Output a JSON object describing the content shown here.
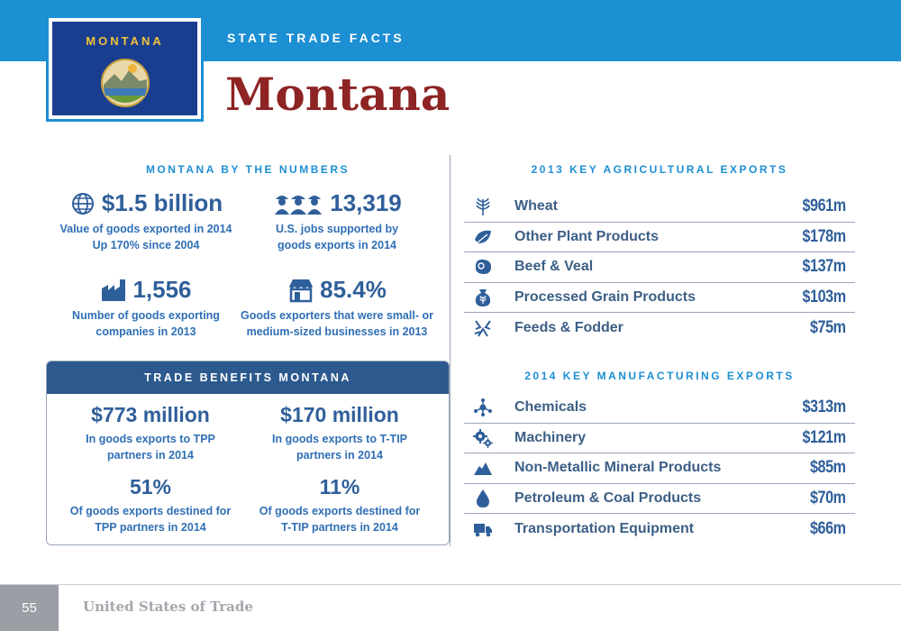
{
  "header": {
    "section_label": "STATE TRADE FACTS",
    "flag_text": "MONTANA",
    "state_name": "Montana"
  },
  "numbers": {
    "heading": "MONTANA BY THE NUMBERS",
    "stats": [
      {
        "icon": "globe-icon",
        "value": "$1.5 billion",
        "line1": "Value of goods exported in 2014",
        "line2": "Up 170% since 2004"
      },
      {
        "icon": "workers-icon",
        "value": "13,319",
        "line1": "U.S. jobs supported by",
        "line2": "goods exports in 2014"
      },
      {
        "icon": "factory-icon",
        "value": "1,556",
        "line1": "Number of goods exporting",
        "line2": "companies in 2013"
      },
      {
        "icon": "storefront-icon",
        "value": "85.4%",
        "line1": "Goods exporters that were small- or",
        "line2": "medium-sized businesses in 2013"
      }
    ]
  },
  "benefits": {
    "heading": "TRADE BENEFITS MONTANA",
    "items": [
      {
        "value": "$773 million",
        "line1": "In goods exports to TPP",
        "line2": "partners in 2014"
      },
      {
        "value": "$170 million",
        "line1": "In goods exports to T-TIP",
        "line2": "partners in 2014"
      },
      {
        "value": "51%",
        "line1": "Of goods exports destined for",
        "line2": "TPP partners in 2014"
      },
      {
        "value": "11%",
        "line1": "Of goods exports destined for",
        "line2": "T-TIP partners in 2014"
      }
    ]
  },
  "agricultural": {
    "heading": "2013 KEY AGRICULTURAL EXPORTS",
    "rows": [
      {
        "icon": "wheat-icon",
        "name": "Wheat",
        "value": "$961m"
      },
      {
        "icon": "leaf-icon",
        "name": "Other Plant Products",
        "value": "$178m"
      },
      {
        "icon": "steak-icon",
        "name": "Beef & Veal",
        "value": "$137m"
      },
      {
        "icon": "grain-sack-icon",
        "name": "Processed Grain Products",
        "value": "$103m"
      },
      {
        "icon": "fodder-icon",
        "name": "Feeds & Fodder",
        "value": "$75m"
      }
    ]
  },
  "manufacturing": {
    "heading": "2014 KEY MANUFACTURING EXPORTS",
    "rows": [
      {
        "icon": "molecule-icon",
        "name": "Chemicals",
        "value": "$313m"
      },
      {
        "icon": "gears-icon",
        "name": "Machinery",
        "value": "$121m"
      },
      {
        "icon": "mountain-icon",
        "name": "Non-Metallic Mineral Products",
        "value": "$85m"
      },
      {
        "icon": "oil-drop-icon",
        "name": "Petroleum & Coal Products",
        "value": "$70m"
      },
      {
        "icon": "truck-icon",
        "name": "Transportation Equipment",
        "value": "$66m"
      }
    ]
  },
  "footer": {
    "page_number": "55",
    "publication": "United States of Trade"
  },
  "colors": {
    "header_blue": "#1d8fd3",
    "title_red": "#8e2424",
    "value_blue": "#2f5f9a",
    "benefit_header": "#2d5a8e",
    "flag_blue": "#1a3e8f",
    "flag_gold": "#f0c23a"
  }
}
